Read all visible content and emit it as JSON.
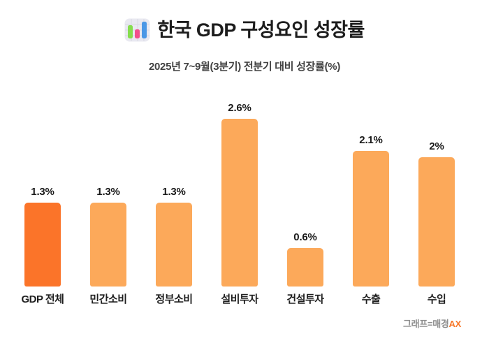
{
  "header": {
    "icon": "bar-chart-emoji-icon",
    "title": "한국 GDP 구성요인 성장률",
    "subtitle": "2025년 7~9월(3분기) 전분기 대비 성장률(%)"
  },
  "chart_data": {
    "type": "bar",
    "title": "한국 GDP 구성요인 성장률",
    "subtitle": "2025년 7~9월(3분기) 전분기 대비 성장률(%)",
    "categories": [
      "GDP 전체",
      "민간소비",
      "정부소비",
      "설비투자",
      "건설투자",
      "수출",
      "수입"
    ],
    "values": [
      1.3,
      1.3,
      1.3,
      2.6,
      0.6,
      2.1,
      2
    ],
    "value_labels": [
      "1.3%",
      "1.3%",
      "1.3%",
      "2.6%",
      "0.6%",
      "2.1%",
      "2%"
    ],
    "xlabel": "",
    "ylabel": "",
    "ylim": [
      0,
      2.8
    ],
    "grid": false,
    "legend": "none",
    "axis_lines": "none",
    "highlight_index": 0,
    "colors": {
      "highlight_bar": "#fb7429",
      "default_bar": "#fca95a",
      "value_label": "#1a1a1a",
      "category_label": "#1f1f1f"
    }
  },
  "footer": {
    "credit_prefix": "그래프=매경",
    "credit_suffix": "AX",
    "credit_prefix_color": "#8e8e8e",
    "credit_suffix_color": "#f7782a"
  }
}
